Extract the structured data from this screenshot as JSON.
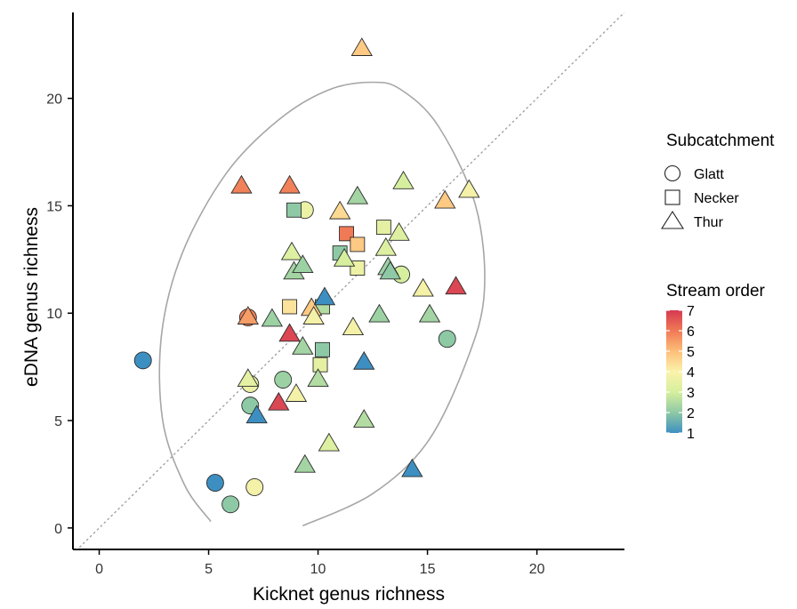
{
  "chart_data": {
    "type": "scatter",
    "xlabel": "Kicknet genus richness",
    "ylabel": "eDNA genus richness",
    "xlim": [
      -1.2,
      24
    ],
    "ylim": [
      -1,
      24
    ],
    "x_ticks": [
      0,
      5,
      10,
      15,
      20
    ],
    "y_ticks": [
      0,
      5,
      10,
      15,
      20
    ],
    "grid": false,
    "reference_line": {
      "type": "identity",
      "style": "dotted",
      "color": "#9a9a9a"
    },
    "ellipse": {
      "color": "#a6a6a6",
      "points": [
        [
          9.3,
          0.1
        ],
        [
          12.5,
          1.6
        ],
        [
          15.0,
          4.0
        ],
        [
          16.8,
          7.8
        ],
        [
          17.6,
          11.0
        ],
        [
          17.2,
          15.0
        ],
        [
          15.5,
          18.7
        ],
        [
          13.8,
          20.4
        ],
        [
          12.5,
          20.75
        ],
        [
          10.5,
          20.4
        ],
        [
          8.2,
          19.0
        ],
        [
          5.8,
          16.5
        ],
        [
          3.8,
          12.8
        ],
        [
          2.85,
          9.0
        ],
        [
          2.9,
          5.0
        ],
        [
          3.9,
          2.0
        ],
        [
          5.1,
          0.3
        ]
      ]
    },
    "legend": {
      "shape_title": "Subcatchment",
      "shapes": [
        {
          "name": "Glatt",
          "shape": "circle"
        },
        {
          "name": "Necker",
          "shape": "square"
        },
        {
          "name": "Thur",
          "shape": "triangle"
        }
      ],
      "color_title": "Stream order",
      "color_labels": [
        "7",
        "6",
        "5",
        "4",
        "3",
        "2",
        "1"
      ],
      "color_stops": {
        "1": "#3d8fc2",
        "2": "#8ec9a5",
        "3": "#d6ef9e",
        "4": "#fbf2ab",
        "5": "#fdbf79",
        "6": "#f07a55",
        "7": "#d63a52"
      }
    },
    "series": [
      {
        "name": "Glatt",
        "shape": "circle",
        "points": [
          {
            "x": 2.0,
            "y": 7.8,
            "order": 1
          },
          {
            "x": 5.3,
            "y": 2.1,
            "order": 1
          },
          {
            "x": 6.0,
            "y": 1.1,
            "order": 2
          },
          {
            "x": 7.1,
            "y": 1.9,
            "order": 3.8
          },
          {
            "x": 6.9,
            "y": 5.7,
            "order": 2
          },
          {
            "x": 6.9,
            "y": 6.7,
            "order": 3.6
          },
          {
            "x": 6.8,
            "y": 9.8,
            "order": 5.9
          },
          {
            "x": 8.4,
            "y": 6.9,
            "order": 2.2
          },
          {
            "x": 9.4,
            "y": 14.8,
            "order": 3.6
          },
          {
            "x": 13.8,
            "y": 11.8,
            "order": 3
          },
          {
            "x": 15.9,
            "y": 8.8,
            "order": 2
          }
        ]
      },
      {
        "name": "Necker",
        "shape": "square",
        "points": [
          {
            "x": 8.9,
            "y": 14.8,
            "order": 2
          },
          {
            "x": 8.7,
            "y": 10.3,
            "order": 4.3
          },
          {
            "x": 10.2,
            "y": 10.3,
            "order": 2.5
          },
          {
            "x": 10.2,
            "y": 8.3,
            "order": 2
          },
          {
            "x": 10.1,
            "y": 7.6,
            "order": 3.4
          },
          {
            "x": 11.0,
            "y": 12.8,
            "order": 2
          },
          {
            "x": 11.3,
            "y": 13.7,
            "order": 6
          },
          {
            "x": 11.8,
            "y": 13.2,
            "order": 4.8
          },
          {
            "x": 11.8,
            "y": 12.1,
            "order": 3.6
          },
          {
            "x": 13.0,
            "y": 14.0,
            "order": 3.4
          }
        ]
      },
      {
        "name": "Thur",
        "shape": "triangle",
        "points": [
          {
            "x": 6.5,
            "y": 15.9,
            "order": 5.9
          },
          {
            "x": 8.7,
            "y": 15.9,
            "order": 5.9
          },
          {
            "x": 12.0,
            "y": 22.3,
            "order": 4.8
          },
          {
            "x": 6.8,
            "y": 9.8,
            "order": 5.5
          },
          {
            "x": 6.8,
            "y": 6.9,
            "order": 3.4
          },
          {
            "x": 7.2,
            "y": 5.2,
            "order": 1
          },
          {
            "x": 7.9,
            "y": 9.7,
            "order": 2.2
          },
          {
            "x": 8.2,
            "y": 5.8,
            "order": 6.8
          },
          {
            "x": 8.7,
            "y": 9.0,
            "order": 6.8
          },
          {
            "x": 8.8,
            "y": 12.8,
            "order": 3.2
          },
          {
            "x": 8.9,
            "y": 11.9,
            "order": 2.3
          },
          {
            "x": 9.0,
            "y": 6.2,
            "order": 3.8
          },
          {
            "x": 9.3,
            "y": 12.2,
            "order": 2.2
          },
          {
            "x": 9.3,
            "y": 8.4,
            "order": 2.3
          },
          {
            "x": 9.4,
            "y": 2.9,
            "order": 2.3
          },
          {
            "x": 9.7,
            "y": 10.2,
            "order": 4.8
          },
          {
            "x": 9.8,
            "y": 9.8,
            "order": 3.8
          },
          {
            "x": 10.0,
            "y": 6.9,
            "order": 2.5
          },
          {
            "x": 10.3,
            "y": 10.7,
            "order": 1
          },
          {
            "x": 10.5,
            "y": 3.9,
            "order": 3.2
          },
          {
            "x": 11.0,
            "y": 14.7,
            "order": 4.5
          },
          {
            "x": 11.2,
            "y": 12.5,
            "order": 3
          },
          {
            "x": 11.6,
            "y": 9.3,
            "order": 3.8
          },
          {
            "x": 11.8,
            "y": 15.4,
            "order": 2.3
          },
          {
            "x": 12.1,
            "y": 7.7,
            "order": 1
          },
          {
            "x": 12.1,
            "y": 5.0,
            "order": 2.5
          },
          {
            "x": 12.8,
            "y": 9.9,
            "order": 2.2
          },
          {
            "x": 13.1,
            "y": 13.0,
            "order": 3.2
          },
          {
            "x": 13.2,
            "y": 12.1,
            "order": 2.2
          },
          {
            "x": 13.3,
            "y": 11.9,
            "order": 2
          },
          {
            "x": 13.7,
            "y": 13.7,
            "order": 3.2
          },
          {
            "x": 13.9,
            "y": 16.1,
            "order": 3
          },
          {
            "x": 14.3,
            "y": 2.7,
            "order": 1
          },
          {
            "x": 14.8,
            "y": 11.1,
            "order": 3.8
          },
          {
            "x": 15.1,
            "y": 9.9,
            "order": 2.3
          },
          {
            "x": 15.8,
            "y": 15.2,
            "order": 4.8
          },
          {
            "x": 16.3,
            "y": 11.2,
            "order": 6.8
          },
          {
            "x": 16.9,
            "y": 15.7,
            "order": 3.8
          }
        ]
      }
    ]
  }
}
